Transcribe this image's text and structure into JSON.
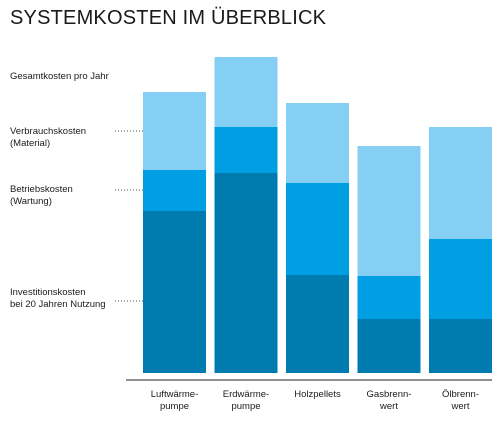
{
  "title": "SYSTEMKOSTEN IM ÜBERBLICK",
  "colors": {
    "verbrauch": "#84cff3",
    "betrieb": "#009fe3",
    "investition": "#007bb0",
    "axis": "#222222"
  },
  "labels": {
    "gesamt": "Gesamtkosten pro Jahr",
    "verbrauch": "Verbrauchskosten\n(Material)",
    "betrieb": "Betriebskosten\n(Wartung)",
    "investition": "Investitionskosten\nbei 20 Jahren Nutzung"
  },
  "chart_data": {
    "type": "bar",
    "stacked": true,
    "title": "SYSTEMKOSTEN IM ÜBERBLICK",
    "categories": [
      "Luftwärme-\npumpe",
      "Erdwärme-\npumpe",
      "Holzpellets",
      "Gasbrenn-\nwert",
      "Ölbrenn-\nwert"
    ],
    "series": [
      {
        "name": "Investitionskosten bei 20 Jahren Nutzung",
        "values": [
          162,
          200,
          98,
          54,
          54
        ]
      },
      {
        "name": "Betriebskosten (Wartung)",
        "values": [
          41,
          46,
          92,
          43,
          80
        ]
      },
      {
        "name": "Verbrauchskosten (Material)",
        "values": [
          78,
          70,
          80,
          130,
          112
        ]
      }
    ],
    "ylim": [
      0,
      320
    ],
    "grid": false
  }
}
